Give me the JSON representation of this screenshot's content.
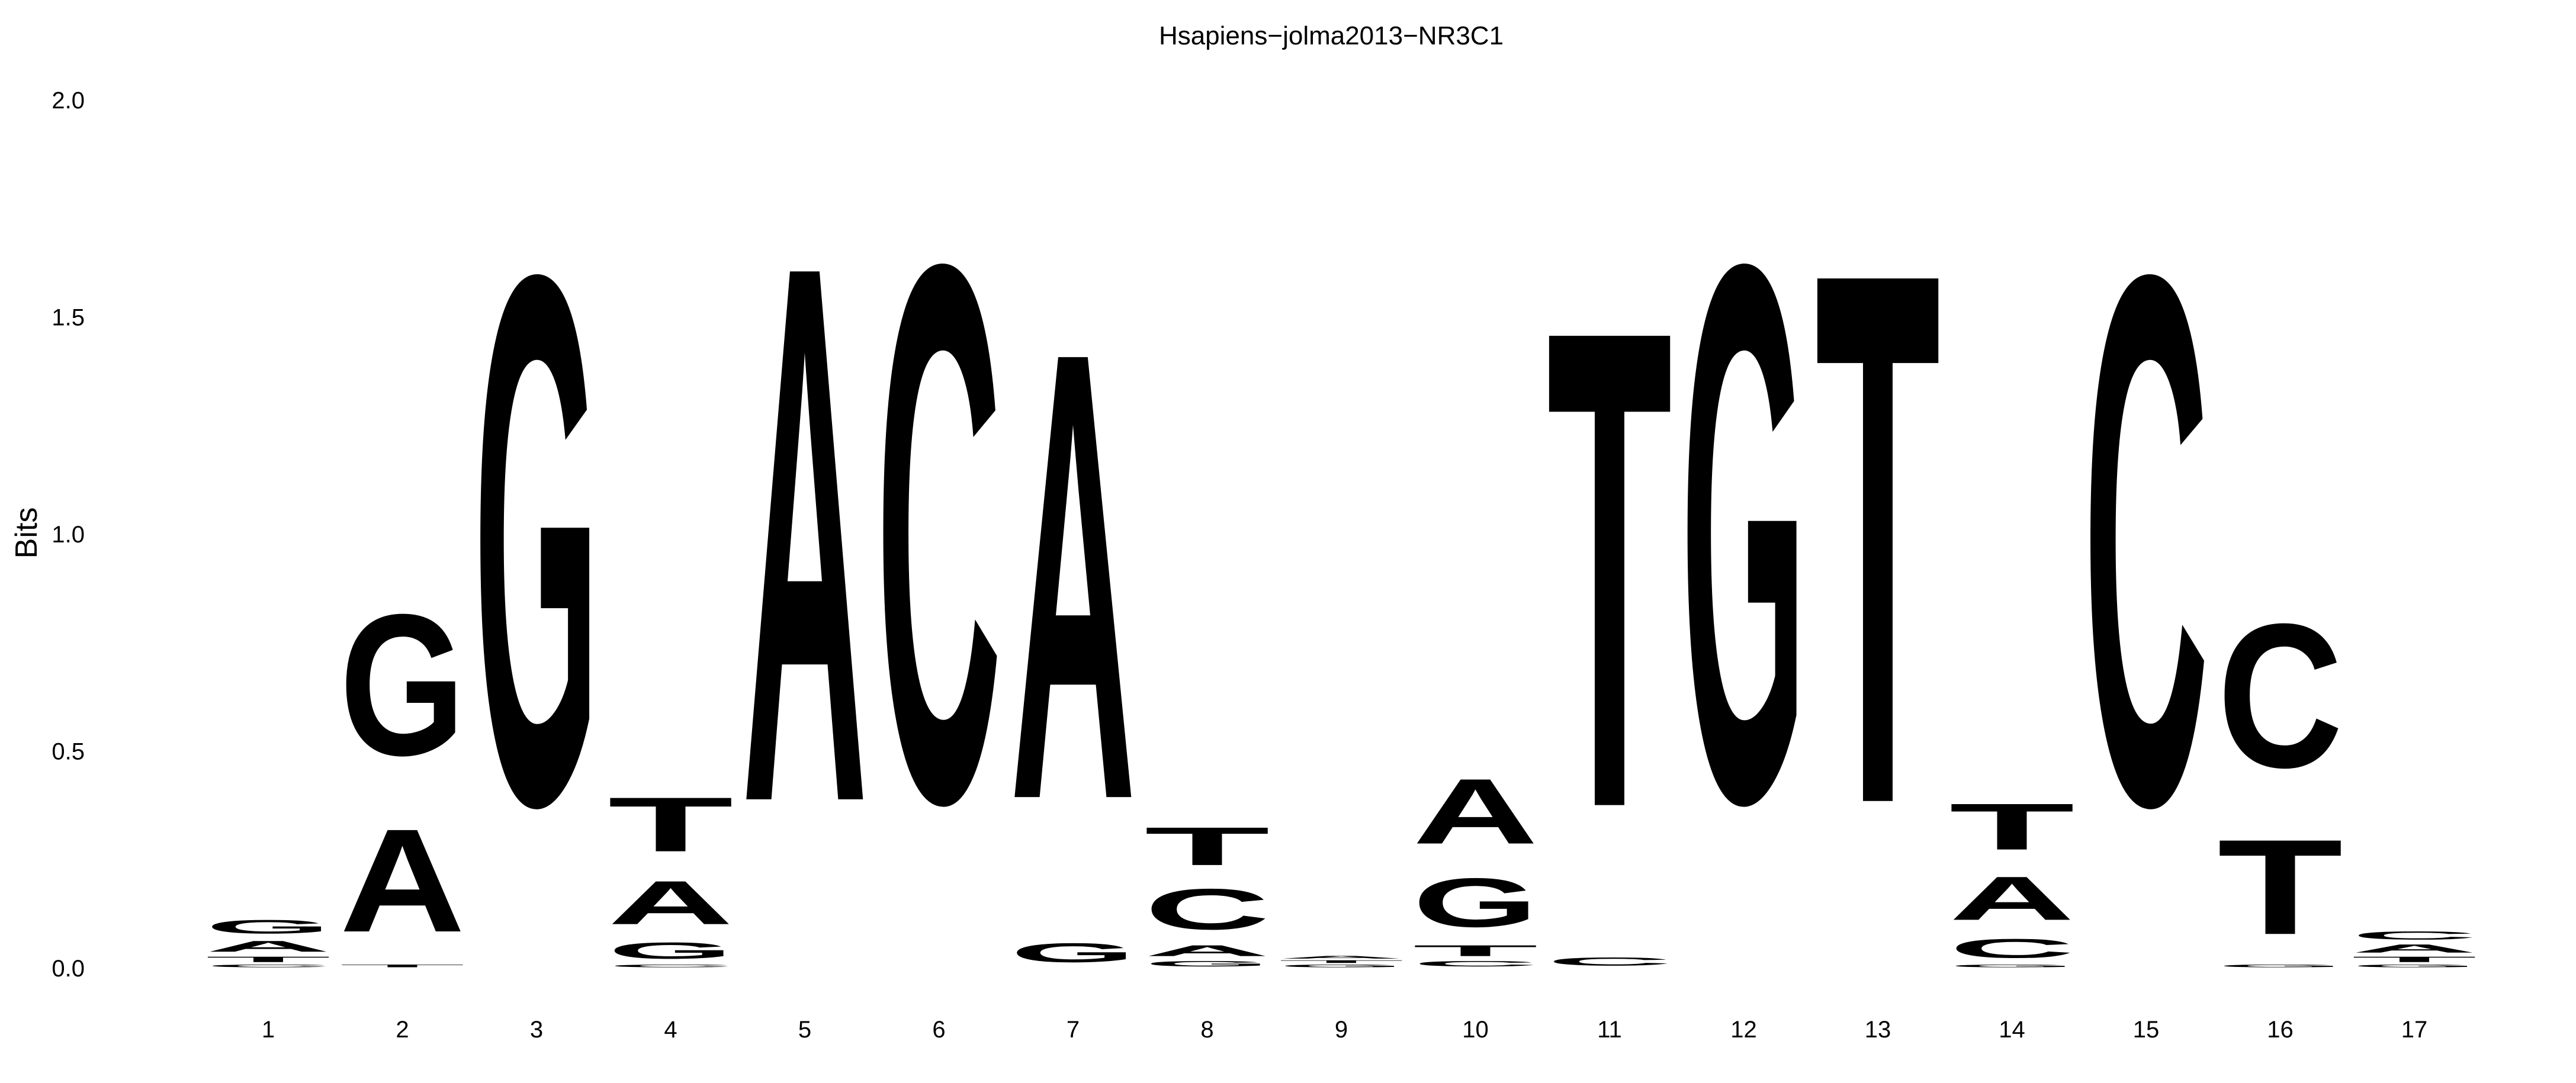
{
  "chart_data": {
    "type": "sequence-logo",
    "title": "Hsapiens−jolma2013−NR3C1",
    "ylabel": "Bits",
    "xlabel": "",
    "ylim": [
      0,
      2.0
    ],
    "yticks": [
      "0.0",
      "0.5",
      "1.0",
      "1.5",
      "2.0"
    ],
    "grid": false,
    "colors": {
      "A": "#109648",
      "C": "#255C99",
      "G": "#F7B32B",
      "T": "#D62839"
    },
    "positions": [
      {
        "label": "1",
        "stack": [
          [
            "C",
            0.01
          ],
          [
            "T",
            0.02
          ],
          [
            "A",
            0.04
          ],
          [
            "G",
            0.05
          ]
        ]
      },
      {
        "label": "2",
        "stack": [
          [
            "T",
            0.01
          ],
          [
            "A",
            0.38
          ],
          [
            "G",
            0.52
          ]
        ]
      },
      {
        "label": "3",
        "stack": [
          [
            "G",
            1.95
          ]
        ]
      },
      {
        "label": "4",
        "stack": [
          [
            "C",
            0.01
          ],
          [
            "G",
            0.06
          ],
          [
            "A",
            0.16
          ],
          [
            "T",
            0.2
          ]
        ]
      },
      {
        "label": "5",
        "stack": [
          [
            "A",
            1.98
          ]
        ]
      },
      {
        "label": "6",
        "stack": [
          [
            "C",
            1.98
          ]
        ]
      },
      {
        "label": "7",
        "stack": [
          [
            "G",
            0.07
          ],
          [
            "A",
            1.65
          ]
        ]
      },
      {
        "label": "8",
        "stack": [
          [
            "G",
            0.02
          ],
          [
            "A",
            0.04
          ],
          [
            "C",
            0.15
          ],
          [
            "T",
            0.14
          ]
        ]
      },
      {
        "label": "9",
        "stack": [
          [
            "G",
            0.01
          ],
          [
            "T",
            0.01
          ],
          [
            "A",
            0.01
          ]
        ]
      },
      {
        "label": "10",
        "stack": [
          [
            "C",
            0.02
          ],
          [
            "T",
            0.04
          ],
          [
            "G",
            0.18
          ],
          [
            "A",
            0.24
          ]
        ]
      },
      {
        "label": "11",
        "stack": [
          [
            "C",
            0.03
          ],
          [
            "T",
            1.76
          ]
        ]
      },
      {
        "label": "12",
        "stack": [
          [
            "G",
            1.98
          ]
        ]
      },
      {
        "label": "13",
        "stack": [
          [
            "T",
            1.96
          ]
        ]
      },
      {
        "label": "14",
        "stack": [
          [
            "G",
            0.01
          ],
          [
            "C",
            0.07
          ],
          [
            "A",
            0.16
          ],
          [
            "T",
            0.17
          ]
        ]
      },
      {
        "label": "15",
        "stack": [
          [
            "C",
            1.95
          ]
        ]
      },
      {
        "label": "16",
        "stack": [
          [
            "G",
            0.01
          ],
          [
            "T",
            0.35
          ],
          [
            "C",
            0.53
          ]
        ]
      },
      {
        "label": "17",
        "stack": [
          [
            "G",
            0.01
          ],
          [
            "T",
            0.02
          ],
          [
            "A",
            0.03
          ],
          [
            "C",
            0.03
          ]
        ]
      }
    ]
  }
}
